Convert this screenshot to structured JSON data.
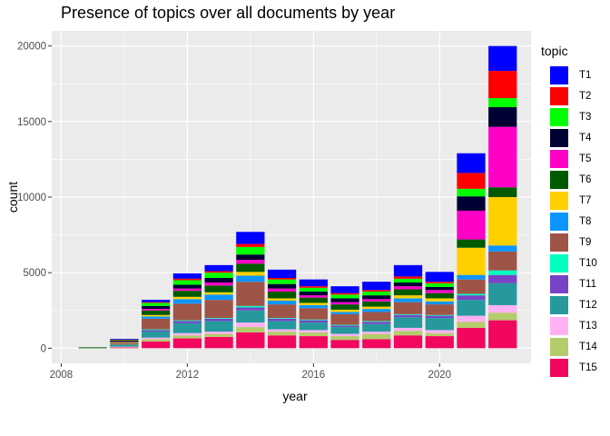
{
  "chart_data": {
    "type": "bar",
    "stacked": true,
    "title": "Presence of topics over all documents by year",
    "xlabel": "year",
    "ylabel": "count",
    "legend_title": "topic",
    "legend_position": "right",
    "grid": true,
    "xlim": [
      2007.7,
      2022.9
    ],
    "ylim": [
      -1000,
      21000
    ],
    "x_ticks": [
      2008,
      2012,
      2016,
      2020
    ],
    "y_ticks": [
      0,
      5000,
      10000,
      15000,
      20000
    ],
    "x": [
      2009,
      2010,
      2011,
      2012,
      2013,
      2014,
      2015,
      2016,
      2017,
      2018,
      2019,
      2020,
      2021,
      2022
    ],
    "series": [
      {
        "name": "T15",
        "color": "#F2075E",
        "values": [
          0,
          50,
          450,
          650,
          750,
          1050,
          850,
          800,
          550,
          600,
          850,
          800,
          1350,
          1850
        ]
      },
      {
        "name": "T14",
        "color": "#B5CC6B",
        "values": [
          0,
          30,
          150,
          200,
          200,
          350,
          250,
          250,
          250,
          350,
          300,
          200,
          400,
          500
        ]
      },
      {
        "name": "T13",
        "color": "#FFB1F4",
        "values": [
          0,
          20,
          100,
          150,
          150,
          300,
          150,
          150,
          150,
          150,
          200,
          200,
          400,
          500
        ]
      },
      {
        "name": "T12",
        "color": "#26999E",
        "values": [
          0,
          100,
          400,
          650,
          700,
          800,
          550,
          500,
          450,
          500,
          700,
          800,
          1050,
          1450
        ]
      },
      {
        "name": "T11",
        "color": "#7744C6",
        "values": [
          0,
          20,
          100,
          150,
          150,
          200,
          150,
          150,
          100,
          150,
          150,
          150,
          300,
          550
        ]
      },
      {
        "name": "T10",
        "color": "#00FFBE",
        "values": [
          0,
          10,
          50,
          50,
          50,
          100,
          50,
          50,
          50,
          50,
          50,
          50,
          100,
          300
        ]
      },
      {
        "name": "T9",
        "color": "#9E5447",
        "values": [
          0,
          100,
          700,
          1100,
          1200,
          1600,
          900,
          750,
          700,
          600,
          800,
          700,
          950,
          1250
        ]
      },
      {
        "name": "T8",
        "color": "#0B96FF",
        "values": [
          0,
          30,
          150,
          300,
          350,
          400,
          250,
          200,
          150,
          200,
          250,
          200,
          300,
          400
        ]
      },
      {
        "name": "T7",
        "color": "#FFD000",
        "values": [
          0,
          20,
          100,
          150,
          150,
          250,
          150,
          150,
          150,
          150,
          200,
          200,
          1800,
          3200
        ]
      },
      {
        "name": "T6",
        "color": "#005A00",
        "values": [
          0,
          50,
          300,
          400,
          450,
          550,
          450,
          350,
          350,
          350,
          400,
          350,
          550,
          650
        ]
      },
      {
        "name": "T5",
        "color": "#FF00C6",
        "values": [
          0,
          20,
          100,
          150,
          200,
          250,
          200,
          150,
          150,
          150,
          200,
          200,
          1900,
          4000
        ]
      },
      {
        "name": "T4",
        "color": "#000033",
        "values": [
          0,
          50,
          200,
          250,
          300,
          350,
          300,
          250,
          250,
          250,
          250,
          200,
          950,
          1300
        ]
      },
      {
        "name": "T3",
        "color": "#00FF00",
        "values": [
          0,
          50,
          200,
          300,
          350,
          500,
          300,
          250,
          250,
          250,
          250,
          250,
          500,
          600
        ]
      },
      {
        "name": "T2",
        "color": "#FF0000",
        "values": [
          0,
          20,
          50,
          100,
          100,
          200,
          100,
          100,
          100,
          100,
          150,
          100,
          1050,
          1800
        ]
      },
      {
        "name": "T1",
        "color": "#0000FF",
        "values": [
          0,
          50,
          150,
          350,
          400,
          800,
          550,
          450,
          450,
          550,
          750,
          650,
          1300,
          1650
        ]
      }
    ]
  }
}
